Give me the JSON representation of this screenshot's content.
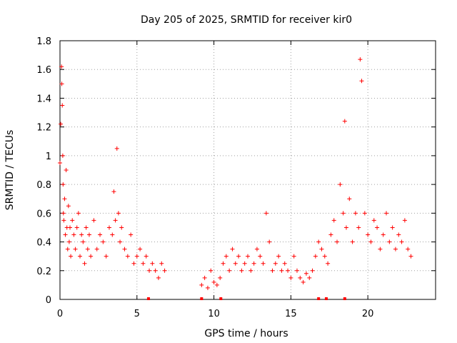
{
  "chart_data": {
    "type": "scatter",
    "title": "Day 205 of 2025, SRMTID for receiver kir0",
    "xlabel": "GPS time / hours",
    "ylabel": "SRMTID / TECUs",
    "xlim": [
      0,
      24.4
    ],
    "ylim": [
      0,
      1.8
    ],
    "xticks": [
      0,
      5,
      10,
      15,
      20
    ],
    "xtick_labels": [
      "0",
      "5",
      "10",
      "15",
      "20"
    ],
    "yticks": [
      0,
      0.2,
      0.4,
      0.6,
      0.8,
      1,
      1.2,
      1.4,
      1.6,
      1.8
    ],
    "ytick_labels": [
      "0",
      "0.2",
      "0.4",
      "0.6",
      "0.8",
      "1",
      "1.2",
      "1.4",
      "1.6",
      "1.8"
    ],
    "grid": true,
    "marker": "plus",
    "color": "#ff0000",
    "zero_markers_x": [
      5.75,
      9.2,
      10.45,
      16.8,
      17.3,
      18.5
    ],
    "series": [
      {
        "name": "SRMTID",
        "x": [
          0.0,
          0.05,
          0.1,
          0.12,
          0.15,
          0.18,
          0.2,
          0.22,
          0.25,
          0.3,
          0.35,
          0.4,
          0.45,
          0.5,
          0.55,
          0.6,
          0.65,
          0.7,
          0.8,
          0.9,
          1.0,
          1.1,
          1.2,
          1.3,
          1.4,
          1.5,
          1.6,
          1.7,
          1.8,
          1.9,
          2.0,
          2.2,
          2.4,
          2.6,
          2.8,
          3.0,
          3.2,
          3.4,
          3.5,
          3.6,
          3.7,
          3.8,
          3.9,
          4.0,
          4.2,
          4.4,
          4.6,
          4.8,
          5.0,
          5.2,
          5.4,
          5.6,
          5.8,
          6.0,
          6.2,
          6.4,
          6.6,
          6.8,
          9.2,
          9.4,
          9.6,
          9.8,
          10.0,
          10.2,
          10.4,
          10.6,
          10.8,
          11.0,
          11.2,
          11.4,
          11.6,
          11.8,
          12.0,
          12.2,
          12.4,
          12.6,
          12.8,
          13.0,
          13.2,
          13.4,
          13.6,
          13.8,
          14.0,
          14.2,
          14.4,
          14.6,
          14.8,
          15.0,
          15.2,
          15.4,
          15.6,
          15.8,
          16.0,
          16.2,
          16.4,
          16.6,
          16.8,
          17.0,
          17.2,
          17.4,
          17.6,
          17.8,
          18.0,
          18.2,
          18.4,
          18.5,
          18.6,
          18.8,
          19.0,
          19.2,
          19.4,
          19.5,
          19.6,
          19.8,
          20.0,
          20.2,
          20.4,
          20.6,
          20.8,
          21.0,
          21.2,
          21.4,
          21.6,
          21.8,
          22.0,
          22.2,
          22.4,
          22.6,
          22.8
        ],
        "y": [
          0.95,
          1.22,
          1.62,
          1.5,
          1.35,
          1.0,
          0.8,
          0.6,
          0.55,
          0.7,
          0.45,
          0.9,
          0.5,
          0.35,
          0.65,
          0.4,
          0.5,
          0.3,
          0.55,
          0.45,
          0.35,
          0.5,
          0.6,
          0.3,
          0.45,
          0.4,
          0.25,
          0.5,
          0.35,
          0.45,
          0.3,
          0.55,
          0.35,
          0.45,
          0.4,
          0.3,
          0.5,
          0.45,
          0.75,
          0.55,
          1.05,
          0.6,
          0.4,
          0.5,
          0.35,
          0.3,
          0.45,
          0.25,
          0.3,
          0.35,
          0.25,
          0.3,
          0.2,
          0.25,
          0.2,
          0.15,
          0.25,
          0.2,
          0.1,
          0.15,
          0.08,
          0.2,
          0.12,
          0.1,
          0.15,
          0.25,
          0.3,
          0.2,
          0.35,
          0.25,
          0.3,
          0.2,
          0.25,
          0.3,
          0.2,
          0.25,
          0.35,
          0.3,
          0.25,
          0.6,
          0.4,
          0.2,
          0.25,
          0.3,
          0.2,
          0.25,
          0.2,
          0.15,
          0.3,
          0.2,
          0.15,
          0.12,
          0.18,
          0.15,
          0.2,
          0.3,
          0.4,
          0.35,
          0.3,
          0.25,
          0.45,
          0.55,
          0.4,
          0.8,
          0.6,
          1.24,
          0.5,
          0.7,
          0.4,
          0.6,
          0.5,
          1.67,
          1.52,
          0.6,
          0.45,
          0.4,
          0.55,
          0.5,
          0.35,
          0.45,
          0.6,
          0.4,
          0.5,
          0.35,
          0.45,
          0.4,
          0.55,
          0.35,
          0.3
        ]
      }
    ]
  }
}
